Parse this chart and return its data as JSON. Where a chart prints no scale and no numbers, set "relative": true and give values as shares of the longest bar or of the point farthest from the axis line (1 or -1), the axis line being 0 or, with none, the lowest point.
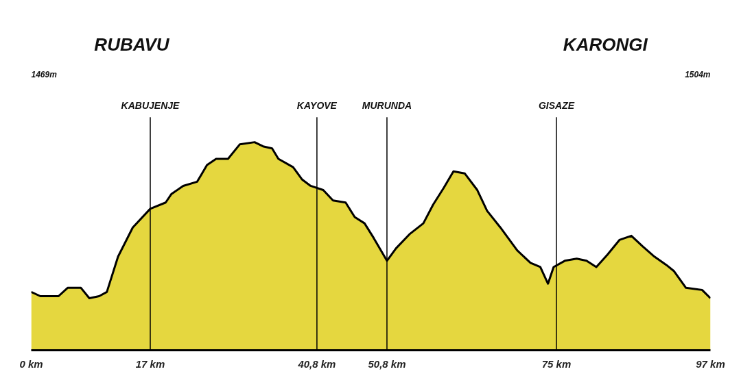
{
  "chart_data": {
    "type": "area",
    "relative": true,
    "x": [
      0,
      1.3,
      3.9,
      5.2,
      7.1,
      8.3,
      9.7,
      10.8,
      12.4,
      14.5,
      17,
      19.2,
      20.0,
      21.7,
      23.7,
      25.1,
      26.4,
      28.1,
      29.8,
      31.9,
      33.1,
      34.4,
      35.3,
      37.4,
      38.7,
      39.9,
      41.7,
      43.1,
      44.9,
      46.2,
      47.6,
      48.9,
      50.8,
      52.1,
      54.1,
      56.0,
      57.4,
      58.9,
      60.3,
      61.9,
      63.7,
      65.1,
      67.0,
      69.4,
      71.3,
      72.7,
      73.8,
      74.6,
      76.2,
      77.9,
      79.3,
      80.7,
      82.3,
      84.0,
      85.7,
      87.3,
      89.0,
      90.7,
      91.8,
      93.5,
      95.8,
      97
    ],
    "series": [
      {
        "color": "#e5d73f",
        "values": [
          0.28,
          0.26,
          0.26,
          0.3,
          0.3,
          0.25,
          0.26,
          0.28,
          0.45,
          0.59,
          0.68,
          0.71,
          0.75,
          0.79,
          0.81,
          0.89,
          0.92,
          0.92,
          0.99,
          1,
          0.98,
          0.97,
          0.92,
          0.88,
          0.82,
          0.79,
          0.77,
          0.72,
          0.71,
          0.64,
          0.61,
          0.54,
          0.43,
          0.49,
          0.56,
          0.61,
          0.7,
          0.78,
          0.86,
          0.85,
          0.77,
          0.67,
          0.59,
          0.48,
          0.42,
          0.4,
          0.32,
          0.4,
          0.43,
          0.44,
          0.43,
          0.4,
          0.46,
          0.53,
          0.55,
          0.5,
          0.45,
          0.41,
          0.38,
          0.3,
          0.29,
          0.25
        ]
      }
    ],
    "xlim": [
      0,
      97
    ],
    "xticks": [
      {
        "value": 0,
        "label": "0 km"
      },
      {
        "value": 17,
        "label": "17 km"
      },
      {
        "value": 40.8,
        "label": "40,8 km"
      },
      {
        "value": 50.8,
        "label": "50,8 km"
      },
      {
        "value": 75,
        "label": "75 km"
      },
      {
        "value": 97,
        "label": "97 km"
      }
    ],
    "ref_lines": [
      {
        "axis": "x",
        "value": 17,
        "label": "KABUJENJE",
        "color": "#000000"
      },
      {
        "axis": "x",
        "value": 40.8,
        "label": "KAYOVE",
        "color": "#000000"
      },
      {
        "axis": "x",
        "value": 50.8,
        "label": "MURUNDA",
        "color": "#000000"
      },
      {
        "axis": "x",
        "value": 75,
        "label": "GISAZE",
        "color": "#000000"
      }
    ],
    "annotations": [
      "RUBAVU",
      "KARONGI",
      "1469m",
      "1504m"
    ],
    "grid": false
  }
}
